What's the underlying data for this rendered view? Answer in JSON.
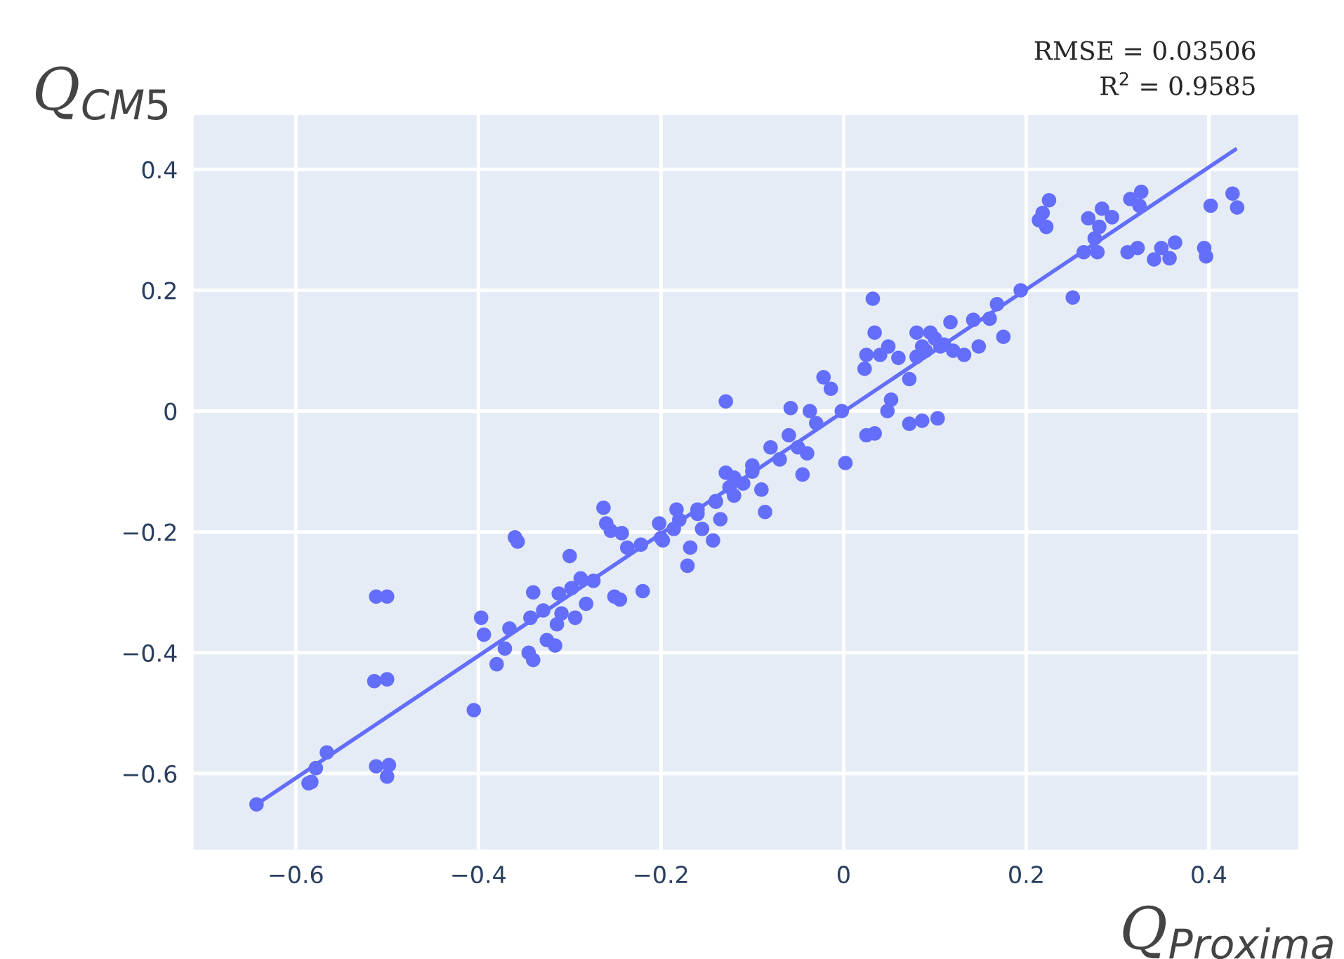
{
  "chart_data": {
    "type": "scatter",
    "xlabel": "Q$_{Proxima}$",
    "ylabel": "Q$_{CM5}$",
    "annotations": [
      "RMSE = 0.03506",
      "R$^{2}$ = 0.9585"
    ],
    "xlim": [
      -0.712,
      0.498
    ],
    "ylim": [
      -0.726,
      0.49
    ],
    "xticks": [
      {
        "value": -0.6,
        "label": "−0.6"
      },
      {
        "value": -0.4,
        "label": "−0.4"
      },
      {
        "value": -0.2,
        "label": "−0.2"
      },
      0,
      0.2,
      0.4
    ],
    "yticks": [
      {
        "value": -0.6,
        "label": "−0.6"
      },
      {
        "value": -0.4,
        "label": "−0.4"
      },
      {
        "value": -0.2,
        "label": "−0.2"
      },
      0,
      0.2,
      0.4
    ],
    "grid": true,
    "series": [
      {
        "marker": "circle",
        "color": "#636efa",
        "x": [
          -0.643,
          -0.586,
          -0.583,
          -0.578,
          -0.566,
          -0.512,
          -0.5,
          -0.514,
          -0.5,
          -0.512,
          -0.498,
          -0.5,
          -0.405,
          -0.397,
          -0.394,
          -0.38,
          -0.371,
          -0.366,
          -0.36,
          -0.357,
          -0.345,
          -0.34,
          -0.343,
          -0.34,
          -0.329,
          -0.325,
          -0.316,
          -0.314,
          -0.312,
          -0.309,
          -0.3,
          -0.298,
          -0.294,
          -0.288,
          -0.282,
          -0.274,
          -0.263,
          -0.26,
          -0.255,
          -0.251,
          -0.245,
          -0.243,
          -0.237,
          -0.22,
          -0.222,
          -0.202,
          -0.198,
          -0.186,
          -0.183,
          -0.171,
          -0.168,
          -0.16,
          -0.155,
          -0.143,
          -0.135,
          -0.14,
          -0.125,
          -0.129,
          -0.129,
          -0.022,
          -0.014,
          0.002,
          -0.045,
          -0.058,
          -0.037,
          -0.002,
          0.025,
          0.034,
          0.048,
          0.052,
          0.032,
          0.034,
          0.025,
          0.023,
          0.04,
          0.049,
          0.06,
          0.072,
          0.072,
          0.086,
          0.103,
          0.08,
          0.095,
          0.086,
          0.106,
          0.117,
          0.132,
          0.142,
          0.148,
          0.16,
          0.168,
          0.175,
          0.194,
          0.214,
          0.222,
          0.225,
          0.218,
          0.251,
          0.263,
          0.268,
          0.275,
          0.278,
          0.28,
          0.283,
          0.294,
          0.311,
          0.314,
          0.322,
          0.326,
          0.324,
          0.34,
          0.348,
          0.357,
          0.363,
          0.395,
          0.397,
          0.402,
          0.426,
          0.431,
          -0.1,
          -0.08,
          -0.06,
          -0.11,
          -0.09,
          -0.07,
          -0.05,
          -0.03,
          -0.12,
          -0.1,
          -0.04,
          0.09,
          0.1,
          0.12,
          0.08,
          0.11,
          -0.2,
          -0.18,
          -0.16,
          -0.14,
          -0.12,
          -0.086
        ],
        "values": [
          -0.651,
          -0.616,
          -0.614,
          -0.591,
          -0.565,
          -0.307,
          -0.307,
          -0.447,
          -0.444,
          -0.588,
          -0.586,
          -0.605,
          -0.495,
          -0.342,
          -0.37,
          -0.419,
          -0.393,
          -0.36,
          -0.209,
          -0.216,
          -0.4,
          -0.412,
          -0.342,
          -0.3,
          -0.33,
          -0.379,
          -0.388,
          -0.353,
          -0.302,
          -0.335,
          -0.24,
          -0.293,
          -0.342,
          -0.277,
          -0.319,
          -0.281,
          -0.16,
          -0.186,
          -0.198,
          -0.307,
          -0.312,
          -0.202,
          -0.226,
          -0.298,
          -0.221,
          -0.186,
          -0.214,
          -0.195,
          -0.163,
          -0.256,
          -0.226,
          -0.163,
          -0.195,
          -0.214,
          -0.179,
          -0.149,
          -0.126,
          -0.102,
          0.016,
          0.056,
          0.037,
          -0.086,
          -0.105,
          0.005,
          0.0,
          0.0,
          -0.04,
          -0.037,
          0.0,
          0.019,
          0.186,
          0.13,
          0.093,
          0.07,
          0.093,
          0.107,
          0.088,
          0.053,
          -0.021,
          -0.016,
          -0.012,
          0.13,
          0.13,
          0.107,
          0.107,
          0.147,
          0.093,
          0.151,
          0.107,
          0.153,
          0.177,
          0.123,
          0.2,
          0.316,
          0.305,
          0.349,
          0.328,
          0.188,
          0.263,
          0.319,
          0.286,
          0.263,
          0.305,
          0.335,
          0.321,
          0.263,
          0.351,
          0.27,
          0.363,
          0.34,
          0.251,
          0.27,
          0.253,
          0.279,
          0.27,
          0.256,
          0.34,
          0.36,
          0.337,
          -0.1,
          -0.06,
          -0.04,
          -0.12,
          -0.13,
          -0.08,
          -0.06,
          -0.02,
          -0.14,
          -0.09,
          -0.07,
          0.1,
          0.12,
          0.1,
          0.09,
          0.11,
          -0.21,
          -0.18,
          -0.17,
          -0.15,
          -0.11,
          -0.167
        ]
      },
      {
        "type": "line",
        "color": "#636efa",
        "x": [
          -0.643,
          0.429
        ],
        "values": [
          -0.651,
          0.433
        ],
        "line_style": "solid"
      }
    ]
  }
}
